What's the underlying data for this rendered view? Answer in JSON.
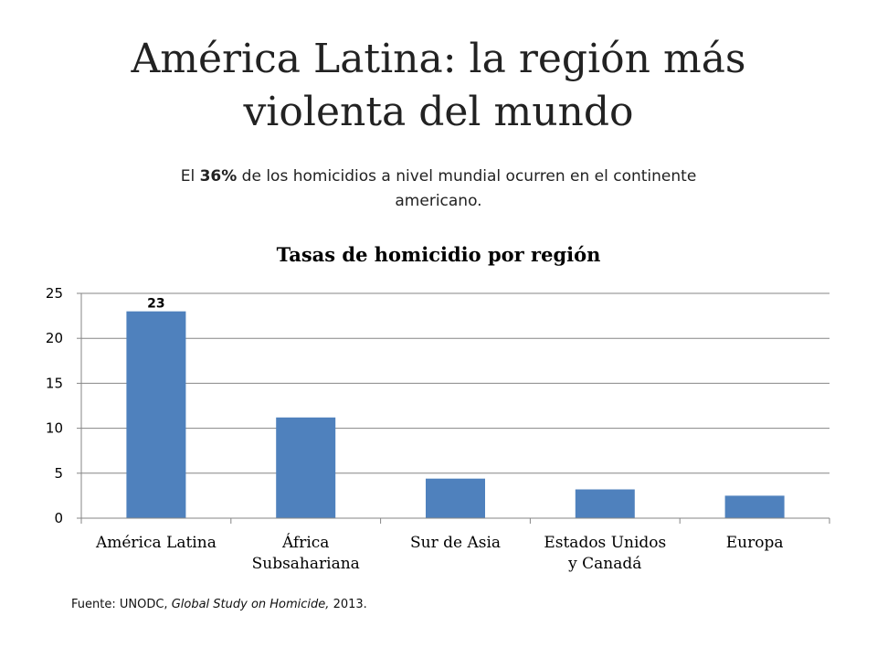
{
  "slide": {
    "title_line1": "América Latina: la región más",
    "title_line2": "violenta del mundo",
    "subtitle": {
      "before": "El ",
      "highlight": "36%",
      "after": " de los homicidios a nivel mundial ocurren en el continente americano."
    },
    "source": {
      "prefix": "Fuente: UNODC, ",
      "work": "Global Study on Homicide,",
      "suffix": " 2013."
    }
  },
  "chart_data": {
    "type": "bar",
    "title": "Tasas de homicidio por región",
    "categories": [
      [
        "América Latina"
      ],
      [
        "África",
        "Subsahariana"
      ],
      [
        "Sur de Asia"
      ],
      [
        "Estados Unidos",
        "y Canadá"
      ],
      [
        "Europa"
      ]
    ],
    "values": [
      23,
      11.2,
      4.4,
      3.2,
      2.5
    ],
    "data_labels": [
      "23",
      null,
      null,
      null,
      null
    ],
    "xlabel": "",
    "ylabel": "",
    "ylim": [
      0,
      25
    ],
    "yticks": [
      0,
      5,
      10,
      15,
      20,
      25
    ],
    "grid": true,
    "legend": "none",
    "bar_color": "#4F81BD",
    "gridline_color": "#868686"
  }
}
